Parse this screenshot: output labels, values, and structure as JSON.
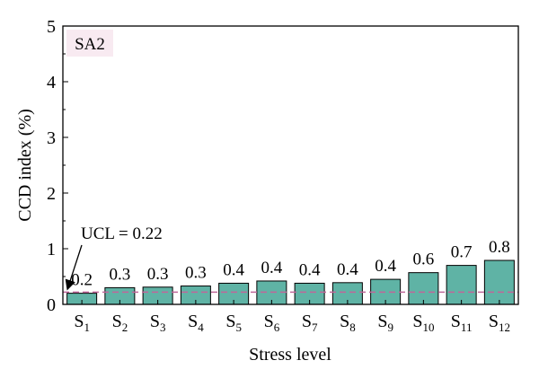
{
  "chart_data": {
    "type": "bar",
    "panel_label": "SA2",
    "categories": [
      {
        "base": "S",
        "sub": "1"
      },
      {
        "base": "S",
        "sub": "2"
      },
      {
        "base": "S",
        "sub": "3"
      },
      {
        "base": "S",
        "sub": "4"
      },
      {
        "base": "S",
        "sub": "5"
      },
      {
        "base": "S",
        "sub": "6"
      },
      {
        "base": "S",
        "sub": "7"
      },
      {
        "base": "S",
        "sub": "8"
      },
      {
        "base": "S",
        "sub": "9"
      },
      {
        "base": "S",
        "sub": "10"
      },
      {
        "base": "S",
        "sub": "11"
      },
      {
        "base": "S",
        "sub": "12"
      }
    ],
    "values": [
      0.2,
      0.3,
      0.31,
      0.33,
      0.38,
      0.42,
      0.38,
      0.39,
      0.45,
      0.57,
      0.7,
      0.79
    ],
    "data_labels": [
      "0.2",
      "0.3",
      "0.3",
      "0.3",
      "0.4",
      "0.4",
      "0.4",
      "0.4",
      "0.4",
      "0.6",
      "0.7",
      "0.8"
    ],
    "xlabel": "Stress level",
    "ylabel": "CCD index (%)",
    "ylim": [
      0,
      5
    ],
    "yticks": [
      0,
      1,
      2,
      3,
      4,
      5
    ],
    "ucl": {
      "value": 0.22,
      "label": "UCL = 0.22",
      "color": "#c0679a"
    },
    "bar_color": "#5fb3a5",
    "panel_bg": "#f8eaf1",
    "grid": false
  }
}
